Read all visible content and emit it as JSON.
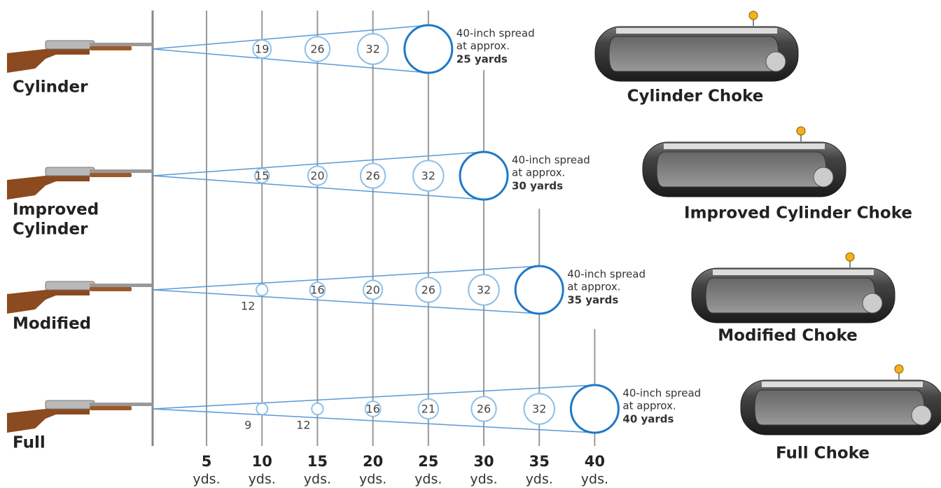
{
  "rows": [
    {
      "label": [
        "Cylinder"
      ],
      "patterns": [
        19,
        26,
        32
      ],
      "spread": {
        "line1": "40-inch spread",
        "line2": "at approx.",
        "distance": "25 yards"
      },
      "choke": "Cylinder Choke"
    },
    {
      "label": [
        "Improved",
        "Cylinder"
      ],
      "patterns": [
        15,
        20,
        26,
        32
      ],
      "spread": {
        "line1": "40-inch spread",
        "line2": "at approx.",
        "distance": "30 yards"
      },
      "choke": "Improved Cylinder Choke"
    },
    {
      "label": [
        "Modified"
      ],
      "patterns": [
        12,
        16,
        20,
        26,
        32
      ],
      "spread": {
        "line1": "40-inch spread",
        "line2": "at approx.",
        "distance": "35 yards"
      },
      "choke": "Modified Choke"
    },
    {
      "label": [
        "Full"
      ],
      "patterns": [
        9,
        12,
        16,
        21,
        26,
        32
      ],
      "spread": {
        "line1": "40-inch spread",
        "line2": "at approx.",
        "distance": "40 yards"
      },
      "choke": "Full Choke"
    }
  ],
  "axis": {
    "distances": [
      "5",
      "10",
      "15",
      "20",
      "25",
      "30",
      "35",
      "40"
    ],
    "unit": "yds."
  }
}
